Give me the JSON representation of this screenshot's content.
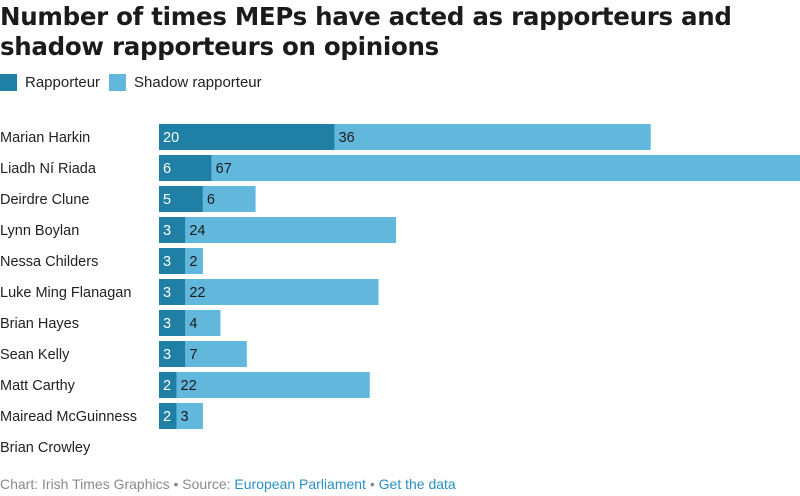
{
  "title": "Number of times MEPs have acted as rapporteurs and shadow rapporteurs on opinions",
  "colors": {
    "rapporteur": "#1f7fa5",
    "shadow": "#62b7dc",
    "link": "#2a8fc4"
  },
  "legend": [
    {
      "label": "Rapporteur",
      "color_key": "rapporteur"
    },
    {
      "label": "Shadow rapporteur",
      "color_key": "shadow"
    }
  ],
  "chart_data": {
    "type": "bar",
    "orientation": "horizontal",
    "stacked": true,
    "categories": [
      "Marian Harkin",
      "Liadh Ní Riada",
      "Deirdre Clune",
      "Lynn Boylan",
      "Nessa Childers",
      "Luke Ming Flanagan",
      "Brian Hayes",
      "Sean Kelly",
      "Matt Carthy",
      "Mairead McGuinness",
      "Brian Crowley"
    ],
    "series": [
      {
        "name": "Rapporteur",
        "values": [
          20,
          6,
          5,
          3,
          3,
          3,
          3,
          3,
          2,
          2,
          null
        ]
      },
      {
        "name": "Shadow rapporteur",
        "values": [
          36,
          67,
          6,
          24,
          2,
          22,
          4,
          7,
          22,
          3,
          null
        ]
      }
    ],
    "xlim": [
      0,
      73
    ],
    "legend_position": "top-left",
    "grid": false
  },
  "footer": {
    "prefix": "Chart: Irish Times Graphics • Source: ",
    "source": "European Parliament",
    "separator": " • ",
    "data_link": "Get the data"
  }
}
